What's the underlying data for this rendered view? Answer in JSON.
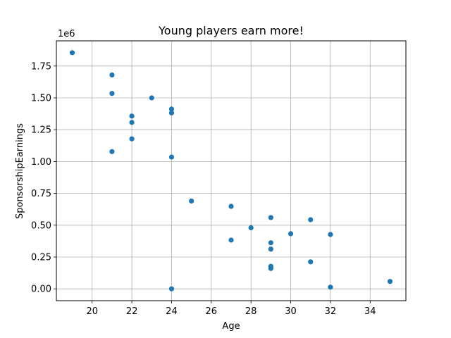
{
  "chart_data": {
    "type": "scatter",
    "title": "Young players earn more!",
    "xlabel": "Age",
    "ylabel": "SponsorshipEarnings",
    "y_offset_label": "1e6",
    "xlim": [
      18.2,
      35.8
    ],
    "ylim": [
      -0.093,
      1.948
    ],
    "x_ticks": [
      20,
      22,
      24,
      26,
      28,
      30,
      32,
      34
    ],
    "x_tick_labels": [
      "20",
      "22",
      "24",
      "26",
      "28",
      "30",
      "32",
      "34"
    ],
    "y_ticks": [
      0.0,
      0.25,
      0.5,
      0.75,
      1.0,
      1.25,
      1.5,
      1.75
    ],
    "y_tick_labels": [
      "0.00",
      "0.25",
      "0.50",
      "0.75",
      "1.00",
      "1.25",
      "1.50",
      "1.75"
    ],
    "grid": true,
    "marker_color": "#1f77b4",
    "points": [
      {
        "x": 19,
        "y": 1.855
      },
      {
        "x": 21,
        "y": 1.68
      },
      {
        "x": 21,
        "y": 1.535
      },
      {
        "x": 21,
        "y": 1.078
      },
      {
        "x": 22,
        "y": 1.357
      },
      {
        "x": 22,
        "y": 1.307
      },
      {
        "x": 22,
        "y": 1.178
      },
      {
        "x": 23,
        "y": 1.5
      },
      {
        "x": 24,
        "y": 1.412
      },
      {
        "x": 24,
        "y": 1.382
      },
      {
        "x": 24,
        "y": 1.035
      },
      {
        "x": 24,
        "y": 0.0
      },
      {
        "x": 25,
        "y": 0.69
      },
      {
        "x": 27,
        "y": 0.648
      },
      {
        "x": 27,
        "y": 0.383
      },
      {
        "x": 28,
        "y": 0.48
      },
      {
        "x": 29,
        "y": 0.56
      },
      {
        "x": 29,
        "y": 0.362
      },
      {
        "x": 29,
        "y": 0.312
      },
      {
        "x": 29,
        "y": 0.177
      },
      {
        "x": 29,
        "y": 0.16
      },
      {
        "x": 30,
        "y": 0.433
      },
      {
        "x": 31,
        "y": 0.543
      },
      {
        "x": 31,
        "y": 0.212
      },
      {
        "x": 32,
        "y": 0.427
      },
      {
        "x": 32,
        "y": 0.013
      },
      {
        "x": 35,
        "y": 0.058
      }
    ]
  }
}
